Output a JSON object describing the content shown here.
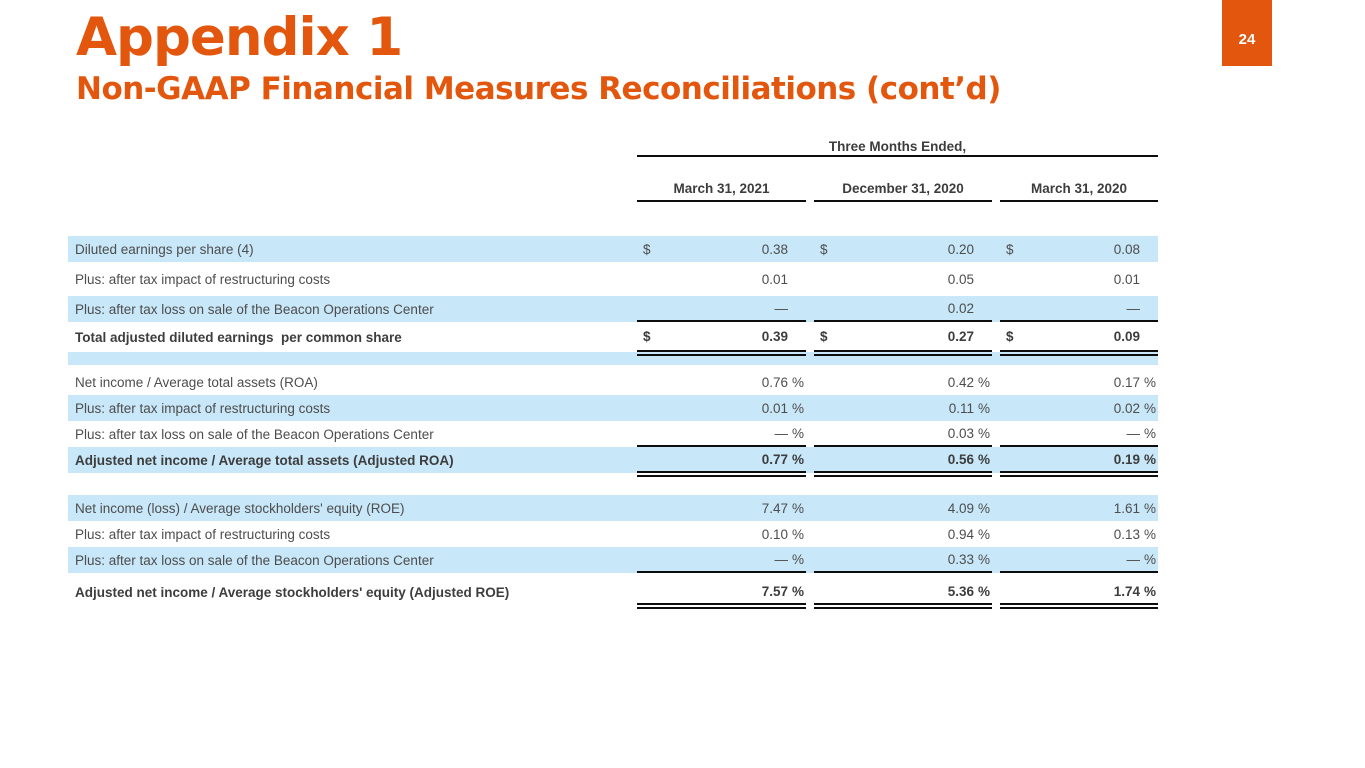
{
  "page": {
    "number": "24",
    "title": "Appendix 1",
    "subtitle": "Non-GAAP Financial Measures Reconciliations (cont’d)"
  },
  "colors": {
    "accent": "#E2570D",
    "row_highlight": "#C8E7F8",
    "text": "#4D4D4D",
    "rule": "#0d0d0d"
  },
  "table": {
    "spanner": "Three Months Ended,",
    "columns": [
      "March 31, 2021",
      "December 31, 2020",
      "March 31, 2020"
    ],
    "currency": "$",
    "sections": [
      {
        "suffix": "",
        "spacer_after": true,
        "rows": [
          {
            "label": "Diluted earnings per share (4)",
            "shade": true,
            "dollar": true,
            "values": [
              "0.38",
              "0.20",
              "0.08"
            ]
          },
          {
            "label": "Plus: after tax impact of restructuring costs",
            "shade": false,
            "values": [
              "0.01",
              "0.05",
              "0.01"
            ]
          },
          {
            "label": "Plus: after tax loss on sale of the Beacon Operations Center",
            "shade": true,
            "rule": true,
            "values": [
              "—",
              "0.02",
              "—"
            ]
          },
          {
            "label": "Total adjusted diluted earnings  per common share",
            "shade": false,
            "bold": true,
            "dollar": true,
            "dbl": true,
            "values": [
              "0.39",
              "0.27",
              "0.09"
            ]
          }
        ]
      },
      {
        "suffix": "%",
        "spacer_after": false,
        "rows": [
          {
            "label": "Net income / Average total assets (ROA)",
            "shade": false,
            "values": [
              "0.76",
              "0.42",
              "0.17"
            ]
          },
          {
            "label": "Plus: after tax impact of restructuring costs",
            "shade": true,
            "values": [
              "0.01",
              "0.11",
              "0.02"
            ]
          },
          {
            "label": "Plus: after tax loss on sale of the Beacon Operations Center",
            "shade": false,
            "rule": true,
            "values": [
              "—",
              "0.03",
              "—"
            ]
          },
          {
            "label": "Adjusted net income / Average total assets (Adjusted ROA)",
            "shade": true,
            "bold": true,
            "dbl": true,
            "values": [
              "0.77",
              "0.56",
              "0.19"
            ]
          }
        ]
      },
      {
        "suffix": "%",
        "spacer_after": false,
        "rows": [
          {
            "label": "Net income (loss) / Average stockholders' equity (ROE)",
            "shade": true,
            "values": [
              "7.47",
              "4.09",
              "1.61"
            ]
          },
          {
            "label": "Plus: after tax impact of restructuring costs",
            "shade": false,
            "values": [
              "0.10",
              "0.94",
              "0.13"
            ]
          },
          {
            "label": "Plus: after tax loss on sale of the Beacon Operations Center",
            "shade": true,
            "rule": true,
            "values": [
              "—",
              "0.33",
              "—"
            ]
          },
          {
            "label": "Adjusted net income / Average stockholders' equity (Adjusted ROE)",
            "shade": false,
            "bold": true,
            "dbl": true,
            "values": [
              "7.57",
              "5.36",
              "1.74"
            ]
          }
        ]
      }
    ]
  }
}
